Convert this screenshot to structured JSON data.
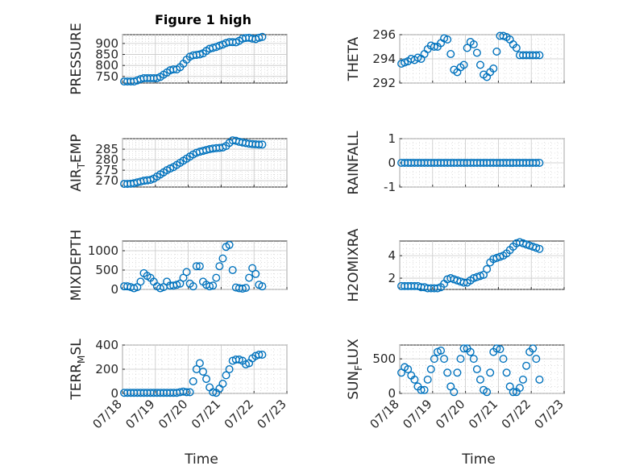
{
  "figure": {
    "title": "Figure 1 high",
    "xlabel": "Time",
    "marker_color": "#0072BD"
  },
  "chart_data": [
    {
      "type": "scatter",
      "ylabel_main": "PRESSURE",
      "ylabel_sub": "",
      "ylabel_tail": "",
      "xticks": [
        "07/18",
        "07/19",
        "07/20",
        "07/21",
        "07/22",
        "07/23"
      ],
      "show_xticks": false,
      "xlim": [
        0,
        5
      ],
      "ylim": [
        720,
        940
      ],
      "yticks": [
        750,
        800,
        850,
        900
      ],
      "x": [
        0.05,
        0.15,
        0.25,
        0.35,
        0.45,
        0.55,
        0.65,
        0.75,
        0.85,
        0.95,
        1.05,
        1.15,
        1.25,
        1.35,
        1.45,
        1.55,
        1.65,
        1.75,
        1.85,
        1.95,
        2.05,
        2.15,
        2.25,
        2.35,
        2.45,
        2.55,
        2.65,
        2.75,
        2.85,
        2.95,
        3.05,
        3.15,
        3.25,
        3.35,
        3.45,
        3.55,
        3.65,
        3.75,
        3.85,
        3.95,
        4.05,
        4.15,
        4.25
      ],
      "y": [
        727,
        727,
        727,
        727,
        732,
        738,
        742,
        742,
        742,
        742,
        742,
        748,
        758,
        768,
        778,
        782,
        782,
        792,
        808,
        826,
        840,
        846,
        848,
        850,
        855,
        866,
        876,
        880,
        884,
        890,
        895,
        902,
        906,
        906,
        905,
        912,
        922,
        925,
        926,
        922,
        920,
        926,
        930
      ]
    },
    {
      "type": "scatter",
      "ylabel_main": "THETA",
      "ylabel_sub": "",
      "ylabel_tail": "",
      "xticks": [
        "07/18",
        "07/19",
        "07/20",
        "07/21",
        "07/22",
        "07/23"
      ],
      "show_xticks": false,
      "xlim": [
        0,
        5
      ],
      "ylim": [
        292,
        296
      ],
      "yticks": [
        292,
        294,
        296
      ],
      "x": [
        0.05,
        0.15,
        0.25,
        0.35,
        0.45,
        0.55,
        0.65,
        0.75,
        0.85,
        0.95,
        1.05,
        1.15,
        1.25,
        1.35,
        1.45,
        1.55,
        1.65,
        1.75,
        1.85,
        1.95,
        2.05,
        2.15,
        2.25,
        2.35,
        2.45,
        2.55,
        2.65,
        2.75,
        2.85,
        2.95,
        3.05,
        3.15,
        3.25,
        3.35,
        3.45,
        3.55,
        3.65,
        3.75,
        3.85,
        3.95,
        4.05,
        4.15,
        4.25
      ],
      "y": [
        293.6,
        293.7,
        293.8,
        294.0,
        293.9,
        294.1,
        294.0,
        294.4,
        294.8,
        295.1,
        295.0,
        295.0,
        295.3,
        295.7,
        295.6,
        294.4,
        293.1,
        292.9,
        293.3,
        293.5,
        294.9,
        295.4,
        295.2,
        294.5,
        293.5,
        292.7,
        292.5,
        292.9,
        293.2,
        294.6,
        295.9,
        295.9,
        295.8,
        295.6,
        295.2,
        294.9,
        294.3,
        294.3,
        294.3,
        294.3,
        294.3,
        294.3,
        294.3
      ]
    },
    {
      "type": "scatter",
      "ylabel_main": "AIR",
      "ylabel_sub": "T",
      "ylabel_tail": "EMP",
      "xticks": [
        "07/18",
        "07/19",
        "07/20",
        "07/21",
        "07/22",
        "07/23"
      ],
      "show_xticks": false,
      "xlim": [
        0,
        5
      ],
      "ylim": [
        267,
        290
      ],
      "yticks": [
        270,
        275,
        280,
        285
      ],
      "x": [
        0.05,
        0.15,
        0.25,
        0.35,
        0.45,
        0.55,
        0.65,
        0.75,
        0.85,
        0.95,
        1.05,
        1.15,
        1.25,
        1.35,
        1.45,
        1.55,
        1.65,
        1.75,
        1.85,
        1.95,
        2.05,
        2.15,
        2.25,
        2.35,
        2.45,
        2.55,
        2.65,
        2.75,
        2.85,
        2.95,
        3.05,
        3.15,
        3.25,
        3.35,
        3.45,
        3.55,
        3.65,
        3.75,
        3.85,
        3.95,
        4.05,
        4.15,
        4.25
      ],
      "y": [
        268.5,
        268.5,
        268.6,
        268.8,
        269.2,
        269.6,
        270.0,
        270.2,
        270.4,
        271.0,
        272.0,
        273.0,
        274.0,
        275.0,
        275.8,
        276.5,
        277.5,
        278.5,
        279.5,
        280.5,
        281.5,
        282.5,
        283.3,
        283.8,
        284.2,
        284.6,
        285.0,
        285.3,
        285.5,
        285.6,
        285.8,
        286.5,
        288.0,
        289.2,
        289.0,
        288.5,
        288.2,
        287.9,
        287.6,
        287.4,
        287.3,
        287.2,
        287.2
      ]
    },
    {
      "type": "scatter",
      "ylabel_main": "RAINFALL",
      "ylabel_sub": "",
      "ylabel_tail": "",
      "xticks": [
        "07/18",
        "07/19",
        "07/20",
        "07/21",
        "07/22",
        "07/23"
      ],
      "show_xticks": false,
      "xlim": [
        0,
        5
      ],
      "ylim": [
        -1,
        1
      ],
      "yticks": [
        -1,
        0,
        1
      ],
      "x": [
        0.05,
        0.15,
        0.25,
        0.35,
        0.45,
        0.55,
        0.65,
        0.75,
        0.85,
        0.95,
        1.05,
        1.15,
        1.25,
        1.35,
        1.45,
        1.55,
        1.65,
        1.75,
        1.85,
        1.95,
        2.05,
        2.15,
        2.25,
        2.35,
        2.45,
        2.55,
        2.65,
        2.75,
        2.85,
        2.95,
        3.05,
        3.15,
        3.25,
        3.35,
        3.45,
        3.55,
        3.65,
        3.75,
        3.85,
        3.95,
        4.05,
        4.15,
        4.25
      ],
      "y": [
        0,
        0,
        0,
        0,
        0,
        0,
        0,
        0,
        0,
        0,
        0,
        0,
        0,
        0,
        0,
        0,
        0,
        0,
        0,
        0,
        0,
        0,
        0,
        0,
        0,
        0,
        0,
        0,
        0,
        0,
        0,
        0,
        0,
        0,
        0,
        0,
        0,
        0,
        0,
        0,
        0,
        0,
        0
      ]
    },
    {
      "type": "scatter",
      "ylabel_main": "MIXDEPTH",
      "ylabel_sub": "",
      "ylabel_tail": "",
      "xticks": [
        "07/18",
        "07/19",
        "07/20",
        "07/21",
        "07/22",
        "07/23"
      ],
      "show_xticks": false,
      "xlim": [
        0,
        5
      ],
      "ylim": [
        0,
        1250
      ],
      "yticks": [
        0,
        500,
        1000
      ],
      "x": [
        0.05,
        0.15,
        0.25,
        0.35,
        0.45,
        0.55,
        0.65,
        0.75,
        0.85,
        0.95,
        1.05,
        1.15,
        1.25,
        1.35,
        1.45,
        1.55,
        1.65,
        1.75,
        1.85,
        1.95,
        2.05,
        2.15,
        2.25,
        2.35,
        2.45,
        2.55,
        2.65,
        2.75,
        2.85,
        2.95,
        3.05,
        3.15,
        3.25,
        3.35,
        3.45,
        3.55,
        3.65,
        3.75,
        3.85,
        3.95,
        4.05,
        4.15,
        4.25
      ],
      "y": [
        80,
        80,
        60,
        30,
        60,
        200,
        420,
        350,
        300,
        200,
        80,
        30,
        60,
        200,
        100,
        100,
        120,
        150,
        300,
        450,
        150,
        80,
        600,
        600,
        200,
        120,
        80,
        100,
        300,
        600,
        800,
        1100,
        1150,
        500,
        50,
        30,
        20,
        40,
        300,
        550,
        400,
        120,
        80
      ]
    },
    {
      "type": "scatter",
      "ylabel_main": "H2OMIXRA",
      "ylabel_sub": "",
      "ylabel_tail": "",
      "xticks": [
        "07/18",
        "07/19",
        "07/20",
        "07/21",
        "07/22",
        "07/23"
      ],
      "show_xticks": false,
      "xlim": [
        0,
        5
      ],
      "ylim": [
        1,
        5.3
      ],
      "yticks": [
        2,
        4
      ],
      "x": [
        0.05,
        0.15,
        0.25,
        0.35,
        0.45,
        0.55,
        0.65,
        0.75,
        0.85,
        0.95,
        1.05,
        1.15,
        1.25,
        1.35,
        1.45,
        1.55,
        1.65,
        1.75,
        1.85,
        1.95,
        2.05,
        2.15,
        2.25,
        2.35,
        2.45,
        2.55,
        2.65,
        2.75,
        2.85,
        2.95,
        3.05,
        3.15,
        3.25,
        3.35,
        3.45,
        3.55,
        3.65,
        3.75,
        3.85,
        3.95,
        4.05,
        4.15,
        4.25
      ],
      "y": [
        1.3,
        1.3,
        1.3,
        1.3,
        1.3,
        1.3,
        1.2,
        1.2,
        1.1,
        1.1,
        1.1,
        1.1,
        1.2,
        1.5,
        1.9,
        2.0,
        1.9,
        1.8,
        1.7,
        1.6,
        1.6,
        1.8,
        2.0,
        2.1,
        2.2,
        2.3,
        2.8,
        3.4,
        3.7,
        3.8,
        3.9,
        4.0,
        4.2,
        4.5,
        4.8,
        5.1,
        5.2,
        5.1,
        5.0,
        4.9,
        4.8,
        4.7,
        4.6
      ]
    },
    {
      "type": "scatter",
      "ylabel_main": "TERR",
      "ylabel_sub": "M",
      "ylabel_tail": "SL",
      "xticks": [
        "07/18",
        "07/19",
        "07/20",
        "07/21",
        "07/22",
        "07/23"
      ],
      "show_xticks": true,
      "xlim": [
        0,
        5
      ],
      "ylim": [
        0,
        400
      ],
      "yticks": [
        0,
        200,
        400
      ],
      "x": [
        0.05,
        0.15,
        0.25,
        0.35,
        0.45,
        0.55,
        0.65,
        0.75,
        0.85,
        0.95,
        1.05,
        1.15,
        1.25,
        1.35,
        1.45,
        1.55,
        1.65,
        1.75,
        1.85,
        1.95,
        2.05,
        2.15,
        2.25,
        2.35,
        2.45,
        2.55,
        2.65,
        2.75,
        2.85,
        2.95,
        3.05,
        3.15,
        3.25,
        3.35,
        3.45,
        3.55,
        3.65,
        3.75,
        3.85,
        3.95,
        4.05,
        4.15,
        4.25
      ],
      "y": [
        5,
        5,
        5,
        5,
        5,
        5,
        5,
        5,
        5,
        5,
        5,
        5,
        5,
        5,
        5,
        5,
        5,
        10,
        15,
        10,
        10,
        100,
        200,
        250,
        180,
        120,
        50,
        10,
        5,
        40,
        80,
        150,
        200,
        270,
        280,
        280,
        270,
        240,
        250,
        290,
        310,
        320,
        320
      ]
    },
    {
      "type": "scatter",
      "ylabel_main": "SUN",
      "ylabel_sub": "F",
      "ylabel_tail": "LUX",
      "xticks": [
        "07/18",
        "07/19",
        "07/20",
        "07/21",
        "07/22",
        "07/23"
      ],
      "show_xticks": true,
      "xlim": [
        0,
        5
      ],
      "ylim": [
        0,
        700
      ],
      "yticks": [
        0,
        500
      ],
      "x": [
        0.05,
        0.15,
        0.25,
        0.35,
        0.45,
        0.55,
        0.65,
        0.75,
        0.85,
        0.95,
        1.05,
        1.15,
        1.25,
        1.35,
        1.45,
        1.55,
        1.65,
        1.75,
        1.85,
        1.95,
        2.05,
        2.15,
        2.25,
        2.35,
        2.45,
        2.55,
        2.65,
        2.75,
        2.85,
        2.95,
        3.05,
        3.15,
        3.25,
        3.35,
        3.45,
        3.55,
        3.65,
        3.75,
        3.85,
        3.95,
        4.05,
        4.15,
        4.25
      ],
      "y": [
        300,
        380,
        350,
        260,
        200,
        100,
        50,
        50,
        200,
        350,
        500,
        600,
        620,
        500,
        300,
        100,
        20,
        300,
        500,
        650,
        650,
        600,
        500,
        350,
        200,
        50,
        20,
        300,
        600,
        650,
        640,
        500,
        300,
        100,
        20,
        20,
        80,
        200,
        400,
        600,
        650,
        500,
        200
      ]
    }
  ]
}
